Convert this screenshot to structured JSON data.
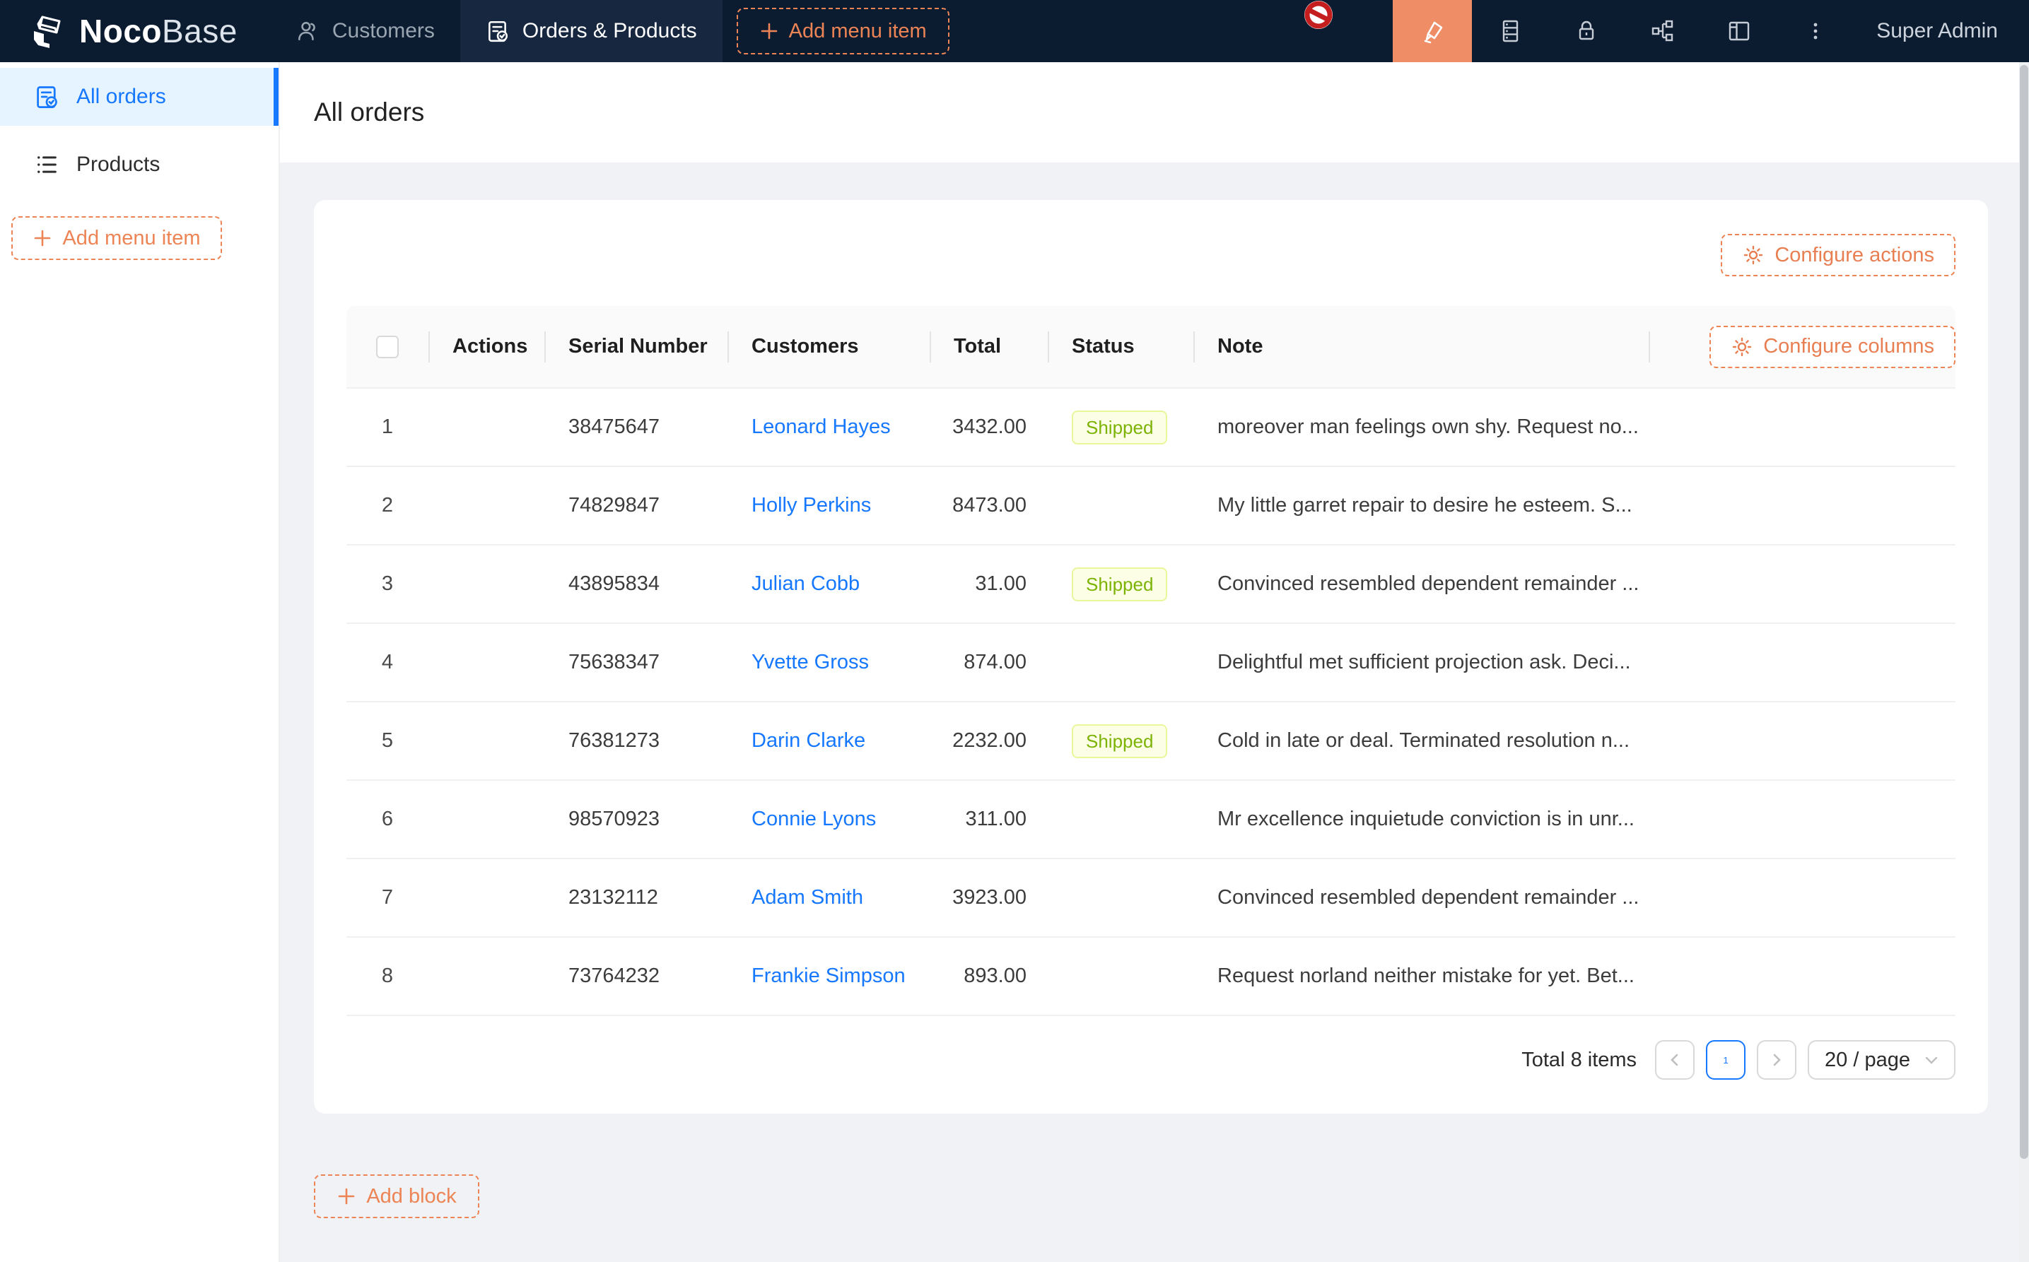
{
  "navbar": {
    "logo": {
      "bold": "Noco",
      "light": "Base"
    },
    "menu_items": [
      {
        "label": "Customers"
      },
      {
        "label": "Orders & Products"
      }
    ],
    "add_menu_item_label": "Add menu item",
    "user": "Super Admin"
  },
  "sidebar": {
    "items": [
      {
        "label": "All orders",
        "selected": true
      },
      {
        "label": "Products",
        "selected": false
      }
    ],
    "add_menu_item_label": "Add menu item"
  },
  "page": {
    "title": "All orders"
  },
  "table": {
    "configure_actions_label": "Configure actions",
    "configure_columns_label": "Configure columns",
    "columns": {
      "actions": "Actions",
      "serial": "Serial Number",
      "customers": "Customers",
      "total": "Total",
      "status": "Status",
      "note": "Note"
    },
    "rows": [
      {
        "index": "1",
        "serial": "38475647",
        "customer": "Leonard Hayes",
        "total": "3432.00",
        "status": "Shipped",
        "note": "moreover man feelings own shy. Request no..."
      },
      {
        "index": "2",
        "serial": "74829847",
        "customer": "Holly Perkins",
        "total": "8473.00",
        "status": "",
        "note": "My little garret repair to desire he esteem. S..."
      },
      {
        "index": "3",
        "serial": "43895834",
        "customer": "Julian Cobb",
        "total": "31.00",
        "status": "Shipped",
        "note": "Convinced resembled dependent remainder ..."
      },
      {
        "index": "4",
        "serial": "75638347",
        "customer": "Yvette Gross",
        "total": "874.00",
        "status": "",
        "note": "Delightful met sufficient projection ask. Deci..."
      },
      {
        "index": "5",
        "serial": "76381273",
        "customer": "Darin Clarke",
        "total": "2232.00",
        "status": "Shipped",
        "note": "Cold in late or deal. Terminated resolution n..."
      },
      {
        "index": "6",
        "serial": "98570923",
        "customer": "Connie Lyons",
        "total": "311.00",
        "status": "",
        "note": "Mr excellence inquietude conviction is in unr..."
      },
      {
        "index": "7",
        "serial": "23132112",
        "customer": "Adam Smith",
        "total": "3923.00",
        "status": "",
        "note": "Convinced resembled dependent remainder ..."
      },
      {
        "index": "8",
        "serial": "73764232",
        "customer": "Frankie Simpson",
        "total": "893.00",
        "status": "",
        "note": "Request norland neither mistake for yet. Bet..."
      }
    ]
  },
  "pagination": {
    "total_text": "Total 8 items",
    "current_page": "1",
    "page_size": "20 / page"
  },
  "add_block_label": "Add block",
  "colors": {
    "navbar_bg": "#0c1c30",
    "navbar_active_tab_bg": "#16273f",
    "accent_orange": "#ed8456",
    "designer_tile_bg": "#ee8d66",
    "link_blue": "#1677ff",
    "sidebar_selected_bg": "#e6f4ff",
    "badge_bg": "#fcffe6",
    "badge_border": "#e9f79a",
    "badge_text": "#7cb305",
    "content_bg": "#f0f2f5",
    "table_header_bg": "#fafafa"
  }
}
